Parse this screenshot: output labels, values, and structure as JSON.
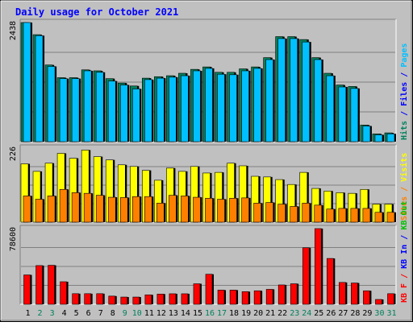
{
  "title": "Daily usage for October 2021",
  "colors": {
    "background": "#c0c0c0",
    "title": "#0000ff",
    "hits": "#00805c",
    "files": "#0000ff",
    "pages": "#00c0ff",
    "visits": "#ffff00",
    "sites": "#ff8000",
    "kbin": "#0000ff",
    "kbout": "#00c000",
    "kbf": "#ff0000",
    "weekday_label": "#000000",
    "weekend_label": "#00805c"
  },
  "chart_data": [
    {
      "type": "bar",
      "panel": "hits-files-pages",
      "categories": [
        "1",
        "2",
        "3",
        "4",
        "5",
        "6",
        "7",
        "8",
        "9",
        "10",
        "11",
        "12",
        "13",
        "14",
        "15",
        "16",
        "17",
        "18",
        "19",
        "20",
        "21",
        "22",
        "23",
        "24",
        "25",
        "26",
        "27",
        "28",
        "29",
        "30",
        "31"
      ],
      "ymax_label": "2438",
      "ylim": [
        0,
        2438
      ],
      "right_label_parts": [
        {
          "text": "Hits",
          "color_key": "hits"
        },
        {
          "text": " / ",
          "color_key": "files"
        },
        {
          "text": "Files",
          "color_key": "files"
        },
        {
          "text": " / ",
          "color_key": "files"
        },
        {
          "text": "Pages",
          "color_key": "pages"
        }
      ],
      "series": [
        {
          "color_key": "hits",
          "values": [
            2438,
            2190,
            1570,
            1310,
            1310,
            1470,
            1450,
            1290,
            1200,
            1140,
            1300,
            1330,
            1350,
            1400,
            1480,
            1530,
            1420,
            1420,
            1490,
            1530,
            1720,
            2150,
            2150,
            2090,
            1720,
            1400,
            1160,
            1130,
            340,
            160,
            180
          ]
        },
        {
          "color_key": "pages",
          "values": [
            2438,
            2170,
            1540,
            1290,
            1290,
            1450,
            1420,
            1240,
            1160,
            1080,
            1270,
            1300,
            1320,
            1350,
            1450,
            1500,
            1380,
            1370,
            1450,
            1500,
            1680,
            2110,
            2110,
            2040,
            1680,
            1350,
            1120,
            1090,
            320,
            140,
            160
          ]
        }
      ]
    },
    {
      "type": "bar",
      "panel": "visits-sites",
      "categories": [
        "1",
        "2",
        "3",
        "4",
        "5",
        "6",
        "7",
        "8",
        "9",
        "10",
        "11",
        "12",
        "13",
        "14",
        "15",
        "16",
        "17",
        "18",
        "19",
        "20",
        "21",
        "22",
        "23",
        "24",
        "25",
        "26",
        "27",
        "28",
        "29",
        "30",
        "31"
      ],
      "ymax_label": "226",
      "ylim": [
        0,
        226
      ],
      "right_label_parts": [
        {
          "text": "Sites",
          "color_key": "sites"
        },
        {
          "text": " / ",
          "color_key": "sites"
        },
        {
          "text": "Visits",
          "color_key": "visits"
        }
      ],
      "series": [
        {
          "name": "Visits",
          "color_key": "visits",
          "values": [
            178,
            155,
            180,
            210,
            195,
            220,
            200,
            190,
            175,
            170,
            158,
            128,
            165,
            155,
            170,
            150,
            152,
            180,
            172,
            140,
            138,
            130,
            115,
            152,
            103,
            95,
            90,
            88,
            100,
            55,
            55
          ]
        },
        {
          "name": "Sites",
          "color_key": "sites",
          "values": [
            80,
            70,
            80,
            100,
            90,
            88,
            82,
            76,
            75,
            78,
            78,
            58,
            82,
            80,
            76,
            73,
            70,
            73,
            74,
            58,
            60,
            55,
            48,
            58,
            52,
            40,
            42,
            42,
            42,
            30,
            30
          ]
        }
      ]
    },
    {
      "type": "bar",
      "panel": "kbytes",
      "categories": [
        "1",
        "2",
        "3",
        "4",
        "5",
        "6",
        "7",
        "8",
        "9",
        "10",
        "11",
        "12",
        "13",
        "14",
        "15",
        "16",
        "17",
        "18",
        "19",
        "20",
        "21",
        "22",
        "23",
        "24",
        "25",
        "26",
        "27",
        "28",
        "29",
        "30",
        "31"
      ],
      "ymax_label": "78600",
      "ylim": [
        0,
        78600
      ],
      "right_label_parts": [
        {
          "text": "KB F",
          "color_key": "kbf"
        },
        {
          "text": " / ",
          "color_key": "kbf"
        },
        {
          "text": "KB In",
          "color_key": "kbin"
        },
        {
          "text": " / ",
          "color_key": "kbin"
        },
        {
          "text": "KB Out",
          "color_key": "kbout"
        }
      ],
      "series": [
        {
          "name": "KB F",
          "color_key": "kbf",
          "values": [
            30500,
            40200,
            40500,
            23400,
            11000,
            11000,
            11000,
            8500,
            7500,
            7500,
            9800,
            10600,
            10900,
            10900,
            21300,
            31200,
            14700,
            14700,
            13100,
            14000,
            15500,
            20100,
            21300,
            58700,
            78600,
            47600,
            22700,
            22100,
            14000,
            5000,
            11000
          ]
        }
      ]
    }
  ]
}
